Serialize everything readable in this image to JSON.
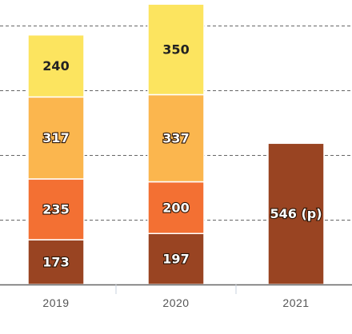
{
  "chart_data": {
    "type": "bar",
    "stacked": true,
    "categories": [
      "2019",
      "2020",
      "2021"
    ],
    "series": [
      {
        "values": [
          173,
          197,
          546
        ],
        "labels": [
          "173",
          "197",
          "546 (p)"
        ],
        "color": "#994422"
      },
      {
        "values": [
          235,
          200,
          null
        ],
        "labels": [
          "235",
          "200",
          ""
        ],
        "color": "#F37033"
      },
      {
        "values": [
          317,
          337,
          null
        ],
        "labels": [
          "317",
          "337",
          ""
        ],
        "color": "#FBB64E"
      },
      {
        "values": [
          240,
          350,
          null
        ],
        "labels": [
          "240",
          "350",
          ""
        ],
        "color": "#FCE45F"
      }
    ],
    "ylim": [
      0,
      1100
    ],
    "grid": true,
    "gridlines": [
      250,
      500,
      750,
      1000
    ],
    "title": "",
    "xlabel": "",
    "ylabel": ""
  }
}
